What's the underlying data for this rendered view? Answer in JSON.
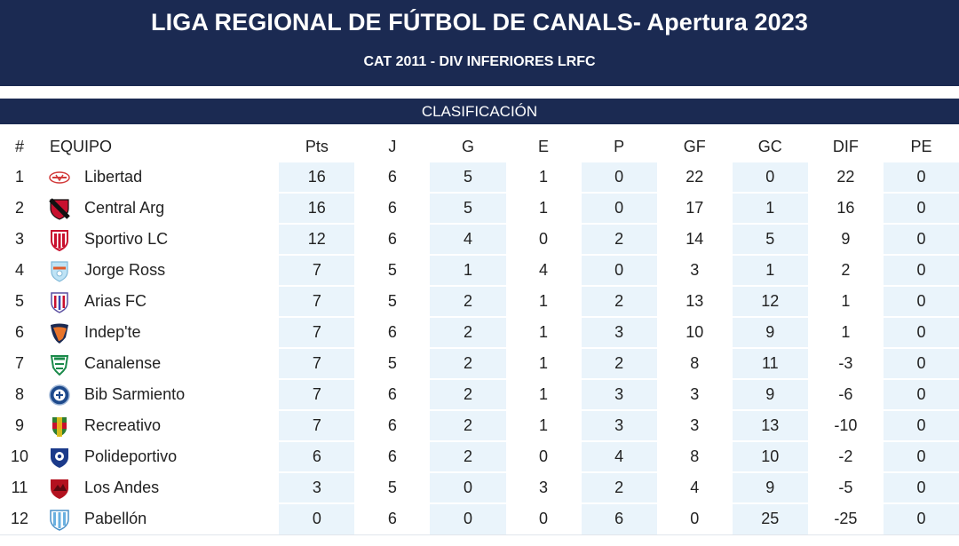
{
  "header": {
    "title": "LIGA REGIONAL DE FÚTBOL DE CANALS- Apertura 2023",
    "subtitle": "CAT 2011 - DIV INFERIORES LRFC"
  },
  "section": {
    "title": "CLASIFICACIÓN"
  },
  "columns": {
    "pos": "#",
    "team": "EQUIPO",
    "pts": "Pts",
    "j": "J",
    "g": "G",
    "e": "E",
    "p": "P",
    "gf": "GF",
    "gc": "GC",
    "dif": "DIF",
    "pe": "PE"
  },
  "rows": [
    {
      "pos": "1",
      "team": "Libertad",
      "crest": "libertad-crest-icon",
      "pts": "16",
      "j": "6",
      "g": "5",
      "e": "1",
      "p": "0",
      "gf": "22",
      "gc": "0",
      "dif": "22",
      "pe": "0"
    },
    {
      "pos": "2",
      "team": "Central Arg",
      "crest": "central-arg-crest-icon",
      "pts": "16",
      "j": "6",
      "g": "5",
      "e": "1",
      "p": "0",
      "gf": "17",
      "gc": "1",
      "dif": "16",
      "pe": "0"
    },
    {
      "pos": "3",
      "team": "Sportivo LC",
      "crest": "sportivo-lc-crest-icon",
      "pts": "12",
      "j": "6",
      "g": "4",
      "e": "0",
      "p": "2",
      "gf": "14",
      "gc": "5",
      "dif": "9",
      "pe": "0"
    },
    {
      "pos": "4",
      "team": "Jorge Ross",
      "crest": "jorge-ross-crest-icon",
      "pts": "7",
      "j": "5",
      "g": "1",
      "e": "4",
      "p": "0",
      "gf": "3",
      "gc": "1",
      "dif": "2",
      "pe": "0"
    },
    {
      "pos": "5",
      "team": "Arias FC",
      "crest": "arias-fc-crest-icon",
      "pts": "7",
      "j": "5",
      "g": "2",
      "e": "1",
      "p": "2",
      "gf": "13",
      "gc": "12",
      "dif": "1",
      "pe": "0"
    },
    {
      "pos": "6",
      "team": "Indep'te",
      "crest": "indepte-crest-icon",
      "pts": "7",
      "j": "6",
      "g": "2",
      "e": "1",
      "p": "3",
      "gf": "10",
      "gc": "9",
      "dif": "1",
      "pe": "0"
    },
    {
      "pos": "7",
      "team": "Canalense",
      "crest": "canalense-crest-icon",
      "pts": "7",
      "j": "5",
      "g": "2",
      "e": "1",
      "p": "2",
      "gf": "8",
      "gc": "11",
      "dif": "-3",
      "pe": "0"
    },
    {
      "pos": "8",
      "team": "Bib Sarmiento",
      "crest": "bib-sarmiento-crest-icon",
      "pts": "7",
      "j": "6",
      "g": "2",
      "e": "1",
      "p": "3",
      "gf": "3",
      "gc": "9",
      "dif": "-6",
      "pe": "0"
    },
    {
      "pos": "9",
      "team": "Recreativo",
      "crest": "recreativo-crest-icon",
      "pts": "7",
      "j": "6",
      "g": "2",
      "e": "1",
      "p": "3",
      "gf": "3",
      "gc": "13",
      "dif": "-10",
      "pe": "0"
    },
    {
      "pos": "10",
      "team": "Polideportivo",
      "crest": "polideportivo-crest-icon",
      "pts": "6",
      "j": "6",
      "g": "2",
      "e": "0",
      "p": "4",
      "gf": "8",
      "gc": "10",
      "dif": "-2",
      "pe": "0"
    },
    {
      "pos": "11",
      "team": "Los Andes",
      "crest": "los-andes-crest-icon",
      "pts": "3",
      "j": "5",
      "g": "0",
      "e": "3",
      "p": "2",
      "gf": "4",
      "gc": "9",
      "dif": "-5",
      "pe": "0"
    },
    {
      "pos": "12",
      "team": "Pabellón",
      "crest": "pabellon-crest-icon",
      "pts": "0",
      "j": "6",
      "g": "0",
      "e": "0",
      "p": "6",
      "gf": "0",
      "gc": "25",
      "dif": "-25",
      "pe": "0"
    }
  ],
  "colors": {
    "header_bg": "#1b2a52",
    "stripe_bg": "#eaf4fb",
    "row_divider": "#e1e6ec"
  }
}
